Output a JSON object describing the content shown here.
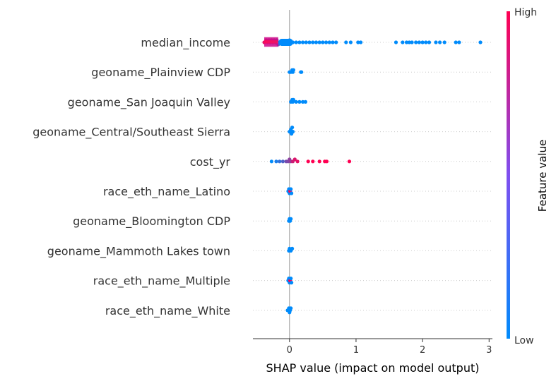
{
  "chart_data": {
    "type": "scatter",
    "subtype": "shap-beeswarm",
    "xlabel": "SHAP value (impact on model output)",
    "xlim": [
      -0.55,
      3.05
    ],
    "xticks": [
      0,
      1,
      2,
      3
    ],
    "colors": {
      "low": "#008bfb",
      "high": "#ff0052"
    },
    "colorbar": {
      "title": "Feature value",
      "high_label": "High",
      "low_label": "Low"
    },
    "features": [
      {
        "name": "median_income",
        "points": [
          {
            "x": -0.38,
            "v": 0.9
          },
          {
            "x": -0.35,
            "v": 0.95
          },
          {
            "x": -0.33,
            "v": 0.8
          },
          {
            "x": -0.31,
            "v": 0.7
          },
          {
            "x": -0.29,
            "v": 0.6
          },
          {
            "x": -0.27,
            "v": 0.65
          },
          {
            "x": -0.25,
            "v": 0.55
          },
          {
            "x": -0.23,
            "v": 0.5
          },
          {
            "x": -0.21,
            "v": 0.45
          },
          {
            "x": -0.19,
            "v": 0.4
          },
          {
            "x": -0.17,
            "v": 0.3
          },
          {
            "x": -0.15,
            "v": 0.1
          },
          {
            "x": -0.12,
            "v": 0.05
          },
          {
            "x": -0.08,
            "v": 0.05
          },
          {
            "x": -0.04,
            "v": 0.0
          },
          {
            "x": 0.0,
            "v": 0.0
          },
          {
            "x": 0.05,
            "v": 0.0
          },
          {
            "x": 0.1,
            "v": 0.0
          },
          {
            "x": 0.15,
            "v": 0.0
          },
          {
            "x": 0.2,
            "v": 0.0
          },
          {
            "x": 0.25,
            "v": 0.0
          },
          {
            "x": 0.3,
            "v": 0.0
          },
          {
            "x": 0.35,
            "v": 0.0
          },
          {
            "x": 0.4,
            "v": 0.0
          },
          {
            "x": 0.45,
            "v": 0.0
          },
          {
            "x": 0.5,
            "v": 0.0
          },
          {
            "x": 0.55,
            "v": 0.0
          },
          {
            "x": 0.6,
            "v": 0.0
          },
          {
            "x": 0.65,
            "v": 0.0
          },
          {
            "x": 0.7,
            "v": 0.0
          },
          {
            "x": 0.85,
            "v": 0.0
          },
          {
            "x": 0.92,
            "v": 0.0
          },
          {
            "x": 1.03,
            "v": 0.0
          },
          {
            "x": 1.07,
            "v": 0.0
          },
          {
            "x": 1.6,
            "v": 0.0
          },
          {
            "x": 1.7,
            "v": 0.0
          },
          {
            "x": 1.76,
            "v": 0.0
          },
          {
            "x": 1.8,
            "v": 0.0
          },
          {
            "x": 1.84,
            "v": 0.0
          },
          {
            "x": 1.9,
            "v": 0.0
          },
          {
            "x": 1.95,
            "v": 0.0
          },
          {
            "x": 2.0,
            "v": 0.0
          },
          {
            "x": 2.05,
            "v": 0.0
          },
          {
            "x": 2.1,
            "v": 0.0
          },
          {
            "x": 2.2,
            "v": 0.0
          },
          {
            "x": 2.26,
            "v": 0.0
          },
          {
            "x": 2.33,
            "v": 0.0
          },
          {
            "x": 2.5,
            "v": 0.0
          },
          {
            "x": 2.55,
            "v": 0.0
          },
          {
            "x": 2.87,
            "v": 0.0
          }
        ]
      },
      {
        "name": "geoname_Plainview CDP",
        "points": [
          {
            "x": 0.0,
            "v": 0.0
          },
          {
            "x": 0.02,
            "v": 0.0
          },
          {
            "x": 0.04,
            "v": 0.0
          },
          {
            "x": 0.05,
            "v": 0.0
          },
          {
            "x": 0.06,
            "v": 0.0
          },
          {
            "x": 0.17,
            "v": 0.0
          },
          {
            "x": 0.18,
            "v": 0.0
          }
        ]
      },
      {
        "name": "geoname_San Joaquin Valley",
        "points": [
          {
            "x": 0.02,
            "v": 0.0
          },
          {
            "x": 0.04,
            "v": 0.0
          },
          {
            "x": 0.05,
            "v": 0.0
          },
          {
            "x": 0.06,
            "v": 0.0
          },
          {
            "x": 0.1,
            "v": 0.0
          },
          {
            "x": 0.15,
            "v": 0.0
          },
          {
            "x": 0.2,
            "v": 0.0
          },
          {
            "x": 0.24,
            "v": 0.0
          }
        ]
      },
      {
        "name": "geoname_Central/Southeast Sierra",
        "points": [
          {
            "x": 0.0,
            "v": 0.0
          },
          {
            "x": 0.01,
            "v": 0.0
          },
          {
            "x": 0.02,
            "v": 0.0
          },
          {
            "x": 0.03,
            "v": 0.0
          },
          {
            "x": 0.04,
            "v": 0.0
          },
          {
            "x": 0.05,
            "v": 0.0
          }
        ]
      },
      {
        "name": "cost_yr",
        "points": [
          {
            "x": -0.27,
            "v": 0.0
          },
          {
            "x": -0.2,
            "v": 0.1
          },
          {
            "x": -0.15,
            "v": 0.2
          },
          {
            "x": -0.1,
            "v": 0.3
          },
          {
            "x": -0.05,
            "v": 0.45
          },
          {
            "x": -0.02,
            "v": 0.5
          },
          {
            "x": 0.0,
            "v": 0.55
          },
          {
            "x": 0.02,
            "v": 0.6
          },
          {
            "x": 0.05,
            "v": 0.8
          },
          {
            "x": 0.08,
            "v": 0.85
          },
          {
            "x": 0.12,
            "v": 0.9
          },
          {
            "x": 0.28,
            "v": 1.0
          },
          {
            "x": 0.35,
            "v": 1.0
          },
          {
            "x": 0.45,
            "v": 1.0
          },
          {
            "x": 0.53,
            "v": 1.0
          },
          {
            "x": 0.56,
            "v": 1.0
          },
          {
            "x": 0.9,
            "v": 1.0
          }
        ]
      },
      {
        "name": "race_eth_name_Latino",
        "points": [
          {
            "x": -0.02,
            "v": 0.0
          },
          {
            "x": -0.01,
            "v": 0.0
          },
          {
            "x": 0.0,
            "v": 0.0
          },
          {
            "x": 0.01,
            "v": 1.0
          },
          {
            "x": 0.02,
            "v": 0.0
          },
          {
            "x": 0.03,
            "v": 0.0
          }
        ]
      },
      {
        "name": "geoname_Bloomington CDP",
        "points": [
          {
            "x": -0.01,
            "v": 0.0
          },
          {
            "x": 0.0,
            "v": 0.0
          },
          {
            "x": 0.01,
            "v": 0.0
          },
          {
            "x": 0.02,
            "v": 0.0
          }
        ]
      },
      {
        "name": "geoname_Mammoth Lakes town",
        "points": [
          {
            "x": -0.01,
            "v": 0.0
          },
          {
            "x": 0.0,
            "v": 0.0
          },
          {
            "x": 0.02,
            "v": 0.0
          },
          {
            "x": 0.04,
            "v": 0.0
          }
        ]
      },
      {
        "name": "race_eth_name_Multiple",
        "points": [
          {
            "x": -0.02,
            "v": 0.0
          },
          {
            "x": -0.01,
            "v": 0.0
          },
          {
            "x": 0.0,
            "v": 0.0
          },
          {
            "x": 0.01,
            "v": 1.0
          },
          {
            "x": 0.02,
            "v": 0.0
          },
          {
            "x": 0.03,
            "v": 0.0
          }
        ]
      },
      {
        "name": "race_eth_name_White",
        "points": [
          {
            "x": -0.03,
            "v": 0.0
          },
          {
            "x": -0.01,
            "v": 0.0
          },
          {
            "x": 0.0,
            "v": 0.0
          },
          {
            "x": 0.01,
            "v": 0.0
          },
          {
            "x": 0.02,
            "v": 0.0
          }
        ]
      }
    ]
  }
}
